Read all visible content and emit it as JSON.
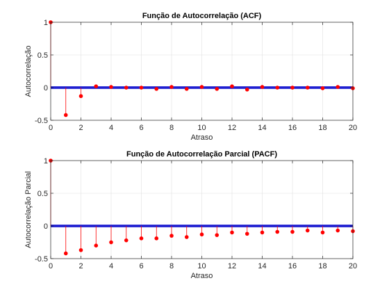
{
  "chart_data": [
    {
      "type": "stem",
      "title": "Função de Autocorrelação (ACF)",
      "xlabel": "Atraso",
      "ylabel": "Autocorrelação",
      "xlim": [
        0,
        20
      ],
      "ylim": [
        -0.5,
        1
      ],
      "xticks": [
        0,
        2,
        4,
        6,
        8,
        10,
        12,
        14,
        16,
        18,
        20
      ],
      "yticks": [
        -0.5,
        0,
        0.5,
        1
      ],
      "ytick_labels": [
        "-0.5",
        "0",
        "0.5",
        "1"
      ],
      "grid": true,
      "x": [
        0,
        1,
        2,
        3,
        4,
        5,
        6,
        7,
        8,
        9,
        10,
        11,
        12,
        13,
        14,
        15,
        16,
        17,
        18,
        19,
        20
      ],
      "values": [
        1.0,
        -0.42,
        -0.13,
        0.02,
        0.01,
        0.0,
        0.0,
        -0.02,
        0.01,
        -0.02,
        0.01,
        -0.02,
        0.02,
        -0.03,
        0.01,
        0.0,
        0.0,
        0.0,
        -0.01,
        0.01,
        -0.01
      ],
      "bounds": [
        0.01,
        -0.01
      ],
      "series_color": "#ff0000",
      "bound_color": "#0000cc"
    },
    {
      "type": "stem",
      "title": "Função de Autocorrelação Parcial (PACF)",
      "xlabel": "Atraso",
      "ylabel": "Autocorrelação Parcial",
      "xlim": [
        0,
        20
      ],
      "ylim": [
        -0.5,
        1
      ],
      "xticks": [
        0,
        2,
        4,
        6,
        8,
        10,
        12,
        14,
        16,
        18,
        20
      ],
      "yticks": [
        -0.5,
        0,
        0.5,
        1
      ],
      "ytick_labels": [
        "-0.5",
        "0",
        "0.5",
        "1"
      ],
      "grid": true,
      "x": [
        0,
        1,
        2,
        3,
        4,
        5,
        6,
        7,
        8,
        9,
        10,
        11,
        12,
        13,
        14,
        15,
        16,
        17,
        18,
        19,
        20
      ],
      "values": [
        1.0,
        -0.42,
        -0.37,
        -0.3,
        -0.25,
        -0.22,
        -0.19,
        -0.19,
        -0.15,
        -0.17,
        -0.13,
        -0.14,
        -0.1,
        -0.12,
        -0.1,
        -0.09,
        -0.09,
        -0.07,
        -0.1,
        -0.07,
        -0.08
      ],
      "bounds": [
        0.01,
        -0.01
      ],
      "series_color": "#ff0000",
      "bound_color": "#0000cc"
    }
  ]
}
